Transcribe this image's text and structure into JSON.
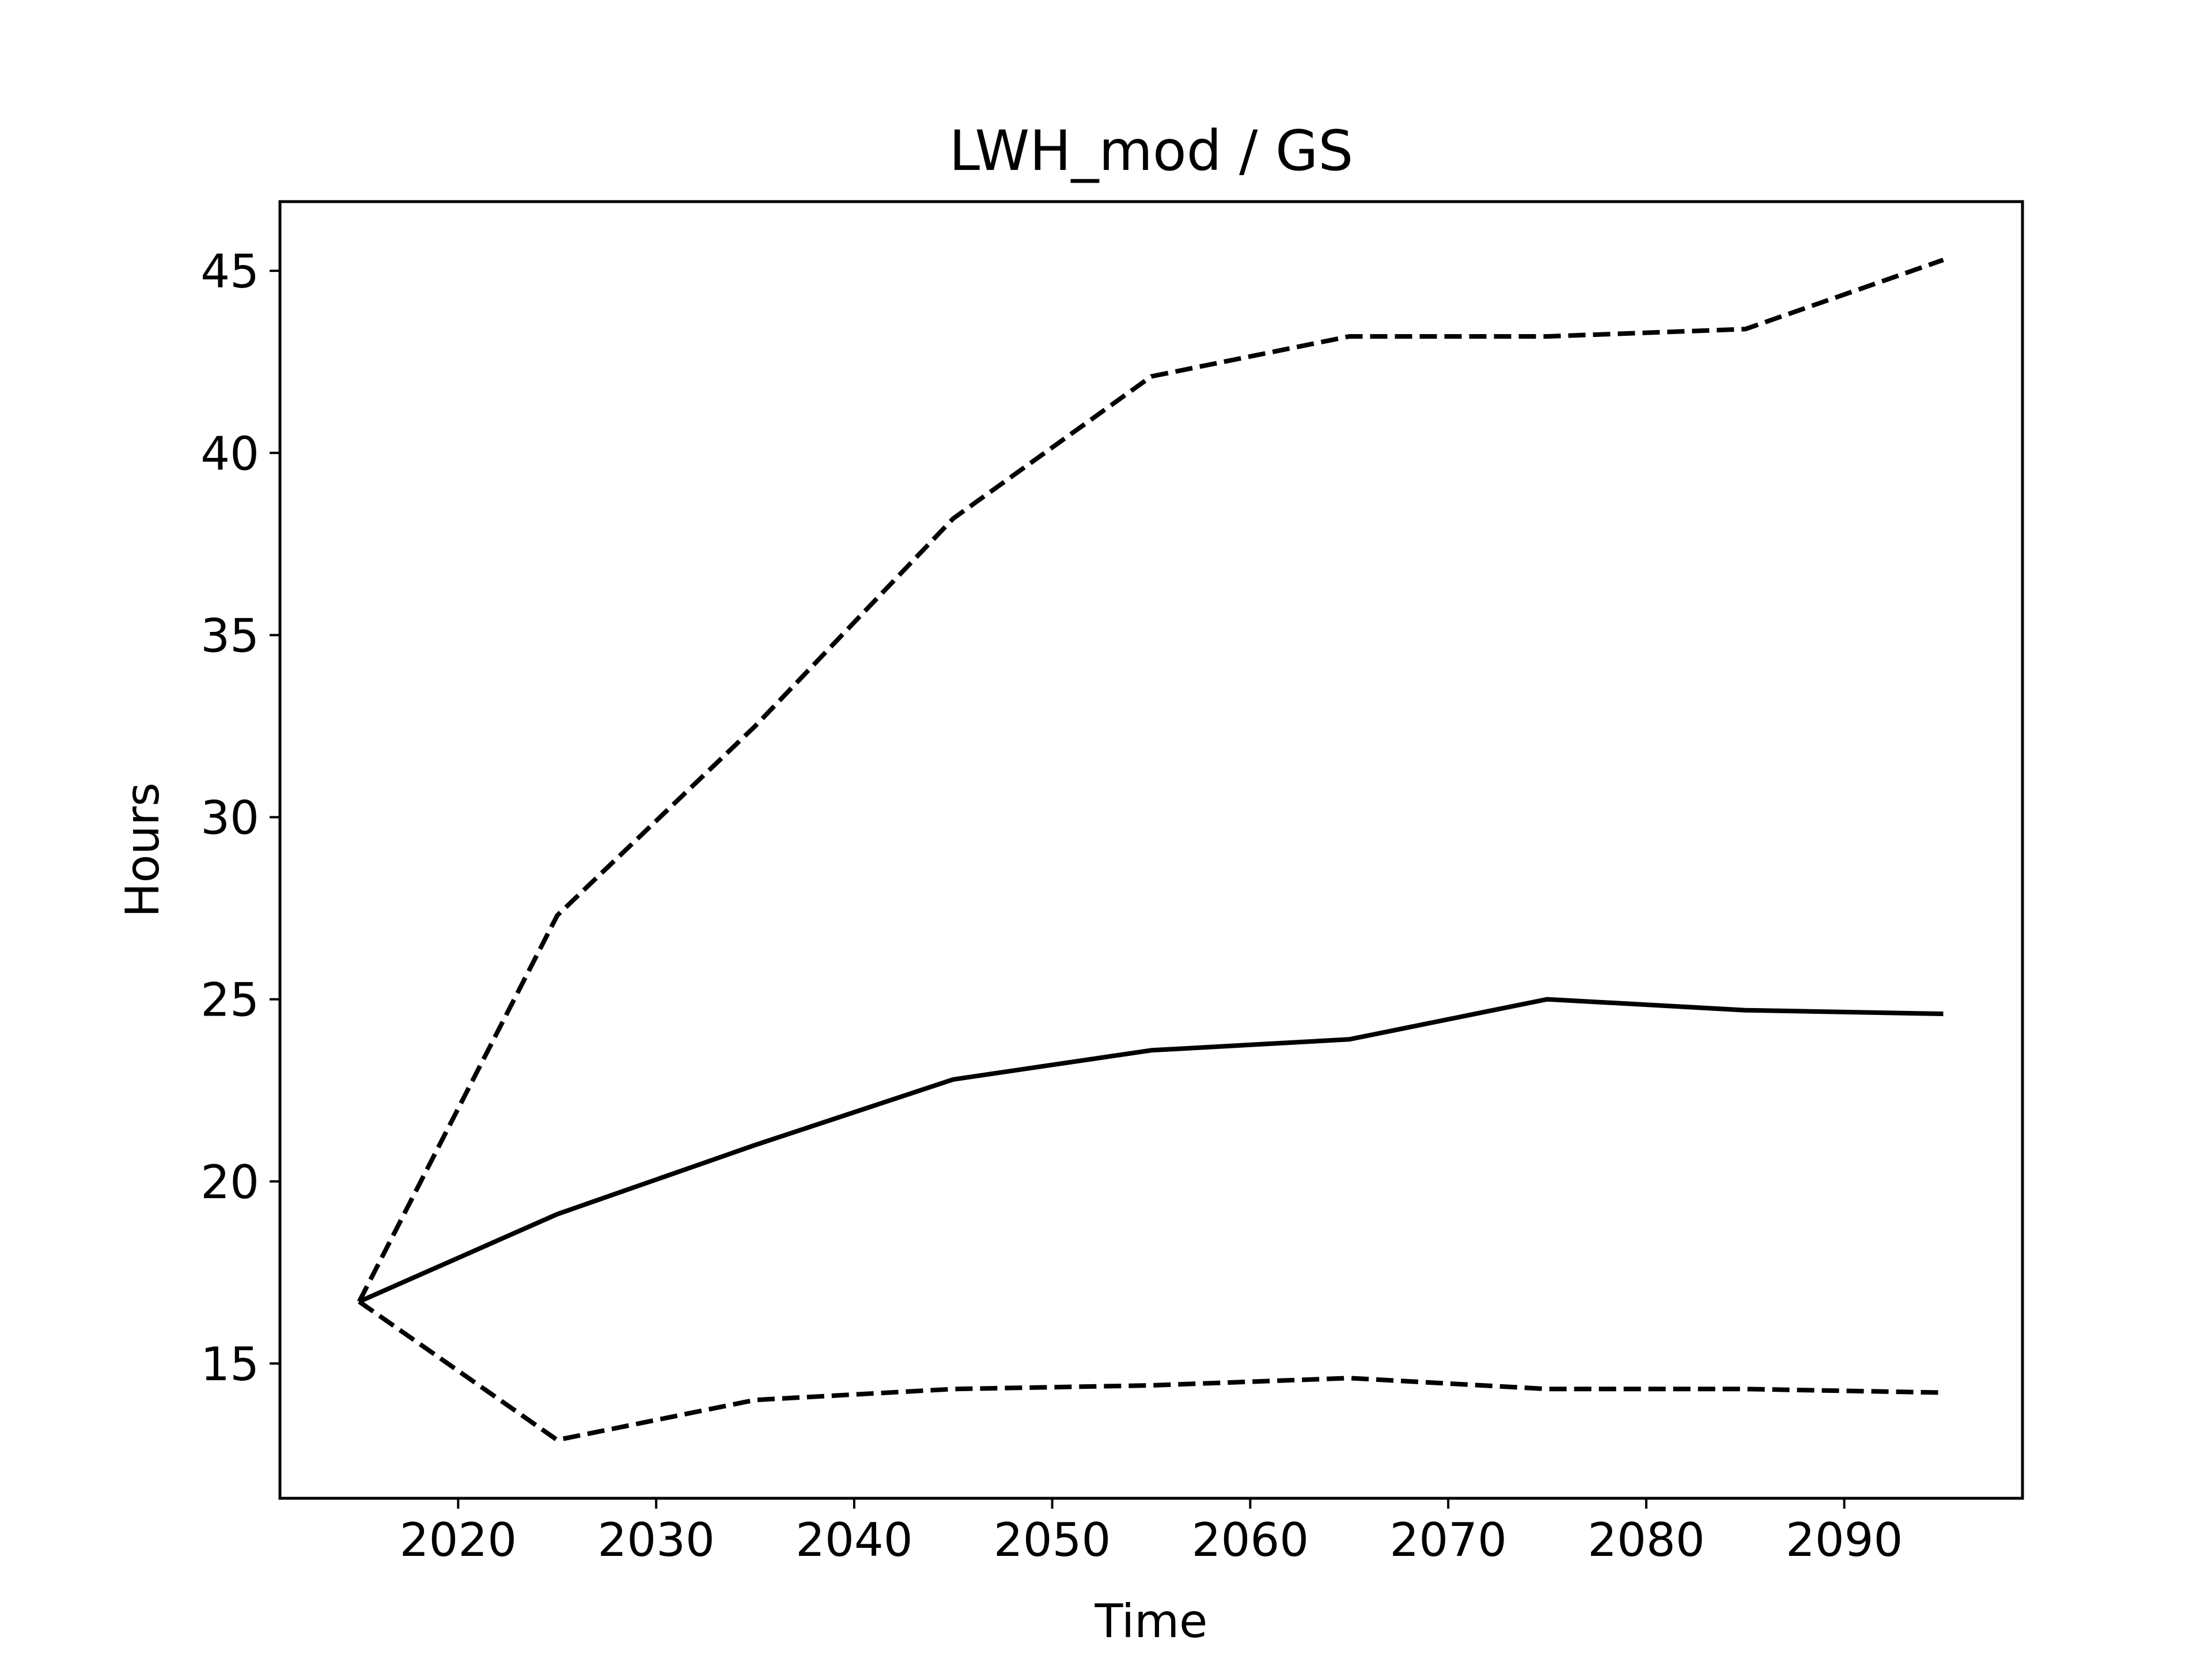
{
  "chart_data": {
    "type": "line",
    "title": "LWH_mod / GS",
    "xlabel": "Time",
    "ylabel": "Hours",
    "xlim": [
      2011,
      2099
    ],
    "ylim": [
      11.3,
      46.9
    ],
    "xticks": [
      2020,
      2030,
      2040,
      2050,
      2060,
      2070,
      2080,
      2090
    ],
    "yticks": [
      15,
      20,
      25,
      30,
      35,
      40,
      45
    ],
    "grid": false,
    "legend": "none",
    "x": [
      2015,
      2025,
      2035,
      2045,
      2055,
      2065,
      2075,
      2085,
      2095
    ],
    "series": [
      {
        "style": "solid",
        "color": "#000000",
        "values": [
          16.7,
          19.1,
          21.0,
          22.8,
          23.6,
          23.9,
          25.0,
          24.7,
          24.6
        ]
      },
      {
        "style": "dashed",
        "color": "#000000",
        "values": [
          16.7,
          27.3,
          32.5,
          38.2,
          42.1,
          43.2,
          43.2,
          43.4,
          45.3
        ]
      },
      {
        "style": "dashed",
        "color": "#000000",
        "values": [
          16.7,
          12.9,
          14.0,
          14.3,
          14.4,
          14.6,
          14.3,
          14.3,
          14.2
        ]
      }
    ]
  }
}
